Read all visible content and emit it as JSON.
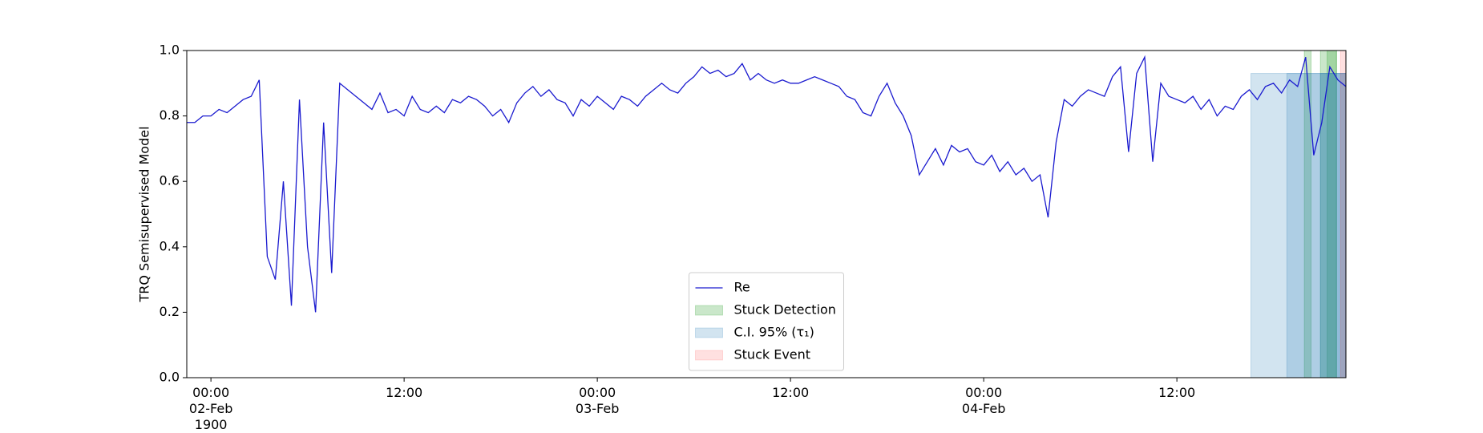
{
  "chart_data": {
    "type": "line",
    "ylabel": "TRQ Semisupervised Model",
    "xlim": [
      "1900-02-01T22:30",
      "1900-02-04T22:30"
    ],
    "xticks": [
      {
        "value": "1900-02-02T00:00",
        "label": "00:00\n02-Feb\n1900"
      },
      {
        "value": "1900-02-02T12:00",
        "label": "12:00"
      },
      {
        "value": "1900-02-03T00:00",
        "label": "00:00\n03-Feb"
      },
      {
        "value": "1900-02-03T12:00",
        "label": "12:00"
      },
      {
        "value": "1900-02-04T00:00",
        "label": "00:00\n04-Feb"
      },
      {
        "value": "1900-02-04T12:00",
        "label": "12:00"
      }
    ],
    "ylim": [
      0,
      1
    ],
    "yticks": [
      {
        "value": 0,
        "label": "0.0"
      },
      0.2,
      0.4,
      0.6,
      0.8,
      {
        "value": 1,
        "label": "1.0"
      }
    ],
    "legend_loc": "lower center",
    "x": [
      "1900-02-01T22:30",
      "1900-02-01T23:00",
      "1900-02-01T23:30",
      "1900-02-02T00:00",
      "1900-02-02T00:30",
      "1900-02-02T01:00",
      "1900-02-02T01:30",
      "1900-02-02T02:00",
      "1900-02-02T02:30",
      "1900-02-02T03:00",
      "1900-02-02T03:30",
      "1900-02-02T04:00",
      "1900-02-02T04:30",
      "1900-02-02T05:00",
      "1900-02-02T05:30",
      "1900-02-02T06:00",
      "1900-02-02T06:30",
      "1900-02-02T07:00",
      "1900-02-02T07:30",
      "1900-02-02T08:00",
      "1900-02-02T08:30",
      "1900-02-02T09:00",
      "1900-02-02T09:30",
      "1900-02-02T10:00",
      "1900-02-02T10:30",
      "1900-02-02T11:00",
      "1900-02-02T11:30",
      "1900-02-02T12:00",
      "1900-02-02T12:30",
      "1900-02-02T13:00",
      "1900-02-02T13:30",
      "1900-02-02T14:00",
      "1900-02-02T14:30",
      "1900-02-02T15:00",
      "1900-02-02T15:30",
      "1900-02-02T16:00",
      "1900-02-02T16:30",
      "1900-02-02T17:00",
      "1900-02-02T17:30",
      "1900-02-02T18:00",
      "1900-02-02T18:30",
      "1900-02-02T19:00",
      "1900-02-02T19:30",
      "1900-02-02T20:00",
      "1900-02-02T20:30",
      "1900-02-02T21:00",
      "1900-02-02T21:30",
      "1900-02-02T22:00",
      "1900-02-02T22:30",
      "1900-02-02T23:00",
      "1900-02-02T23:30",
      "1900-02-03T00:00",
      "1900-02-03T00:30",
      "1900-02-03T01:00",
      "1900-02-03T01:30",
      "1900-02-03T02:00",
      "1900-02-03T02:30",
      "1900-02-03T03:00",
      "1900-02-03T03:30",
      "1900-02-03T04:00",
      "1900-02-03T04:30",
      "1900-02-03T05:00",
      "1900-02-03T05:30",
      "1900-02-03T06:00",
      "1900-02-03T06:30",
      "1900-02-03T07:00",
      "1900-02-03T07:30",
      "1900-02-03T08:00",
      "1900-02-03T08:30",
      "1900-02-03T09:00",
      "1900-02-03T09:30",
      "1900-02-03T10:00",
      "1900-02-03T10:30",
      "1900-02-03T11:00",
      "1900-02-03T11:30",
      "1900-02-03T12:00",
      "1900-02-03T12:30",
      "1900-02-03T13:00",
      "1900-02-03T13:30",
      "1900-02-03T14:00",
      "1900-02-03T14:30",
      "1900-02-03T15:00",
      "1900-02-03T15:30",
      "1900-02-03T16:00",
      "1900-02-03T16:30",
      "1900-02-03T17:00",
      "1900-02-03T17:30",
      "1900-02-03T18:00",
      "1900-02-03T18:30",
      "1900-02-03T19:00",
      "1900-02-03T19:30",
      "1900-02-03T20:00",
      "1900-02-03T20:30",
      "1900-02-03T21:00",
      "1900-02-03T21:30",
      "1900-02-03T22:00",
      "1900-02-03T22:30",
      "1900-02-03T23:00",
      "1900-02-03T23:30",
      "1900-02-04T00:00",
      "1900-02-04T00:30",
      "1900-02-04T01:00",
      "1900-02-04T01:30",
      "1900-02-04T02:00",
      "1900-02-04T02:30",
      "1900-02-04T03:00",
      "1900-02-04T03:30",
      "1900-02-04T04:00",
      "1900-02-04T04:30",
      "1900-02-04T05:00",
      "1900-02-04T05:30",
      "1900-02-04T06:00",
      "1900-02-04T06:30",
      "1900-02-04T07:00",
      "1900-02-04T07:30",
      "1900-02-04T08:00",
      "1900-02-04T08:30",
      "1900-02-04T09:00",
      "1900-02-04T09:30",
      "1900-02-04T10:00",
      "1900-02-04T10:30",
      "1900-02-04T11:00",
      "1900-02-04T11:30",
      "1900-02-04T12:00",
      "1900-02-04T12:30",
      "1900-02-04T13:00",
      "1900-02-04T13:30",
      "1900-02-04T14:00",
      "1900-02-04T14:30",
      "1900-02-04T15:00",
      "1900-02-04T15:30",
      "1900-02-04T16:00",
      "1900-02-04T16:30",
      "1900-02-04T17:00",
      "1900-02-04T17:30",
      "1900-02-04T18:00",
      "1900-02-04T18:30",
      "1900-02-04T19:00",
      "1900-02-04T19:30",
      "1900-02-04T20:00",
      "1900-02-04T20:30",
      "1900-02-04T21:00",
      "1900-02-04T21:30",
      "1900-02-04T22:00",
      "1900-02-04T22:30"
    ],
    "series": [
      {
        "name": "Re",
        "color": "#1a1acf",
        "values": [
          0.78,
          0.78,
          0.8,
          0.8,
          0.82,
          0.81,
          0.83,
          0.85,
          0.86,
          0.91,
          0.37,
          0.3,
          0.6,
          0.22,
          0.85,
          0.4,
          0.2,
          0.78,
          0.32,
          0.9,
          0.88,
          0.86,
          0.84,
          0.82,
          0.87,
          0.81,
          0.82,
          0.8,
          0.86,
          0.82,
          0.81,
          0.83,
          0.81,
          0.85,
          0.84,
          0.86,
          0.85,
          0.83,
          0.8,
          0.82,
          0.78,
          0.84,
          0.87,
          0.89,
          0.86,
          0.88,
          0.85,
          0.84,
          0.8,
          0.85,
          0.83,
          0.86,
          0.84,
          0.82,
          0.86,
          0.85,
          0.83,
          0.86,
          0.88,
          0.9,
          0.88,
          0.87,
          0.9,
          0.92,
          0.95,
          0.93,
          0.94,
          0.92,
          0.93,
          0.96,
          0.91,
          0.93,
          0.91,
          0.9,
          0.91,
          0.9,
          0.9,
          0.91,
          0.92,
          0.91,
          0.9,
          0.89,
          0.86,
          0.85,
          0.81,
          0.8,
          0.86,
          0.9,
          0.84,
          0.8,
          0.74,
          0.62,
          0.66,
          0.7,
          0.65,
          0.71,
          0.69,
          0.7,
          0.66,
          0.65,
          0.68,
          0.63,
          0.66,
          0.62,
          0.64,
          0.6,
          0.62,
          0.49,
          0.72,
          0.85,
          0.83,
          0.86,
          0.88,
          0.87,
          0.86,
          0.92,
          0.95,
          0.69,
          0.93,
          0.98,
          0.66,
          0.9,
          0.86,
          0.85,
          0.84,
          0.86,
          0.82,
          0.85,
          0.8,
          0.83,
          0.82,
          0.86,
          0.88,
          0.85,
          0.89,
          0.9,
          0.87,
          0.91,
          0.89,
          0.98,
          0.68,
          0.78,
          0.95,
          0.91,
          0.89
        ]
      }
    ],
    "regions": [
      {
        "name": "Stuck Detection",
        "color": "#2ca02c",
        "alpha": 0.25,
        "spans": [
          [
            "1900-02-04T19:55",
            "1900-02-04T20:20"
          ],
          [
            "1900-02-04T20:55",
            "1900-02-04T21:55"
          ],
          [
            "1900-02-04T21:20",
            "1900-02-04T21:55"
          ]
        ]
      },
      {
        "name": "C.I. 95% (τ₁)",
        "color": "#1f77b4",
        "alpha": 0.2,
        "ymax": 0.93,
        "spans": [
          [
            "1900-02-04T16:36",
            "1900-02-04T22:30"
          ],
          [
            "1900-02-04T18:50",
            "1900-02-04T22:30"
          ],
          [
            "1900-02-04T20:55",
            "1900-02-04T22:30"
          ]
        ]
      },
      {
        "name": "Stuck Event",
        "color": "#ff0000",
        "alpha": 0.12,
        "spans": [
          [
            "1900-02-04T22:10",
            "1900-02-04T22:30"
          ]
        ]
      }
    ]
  }
}
